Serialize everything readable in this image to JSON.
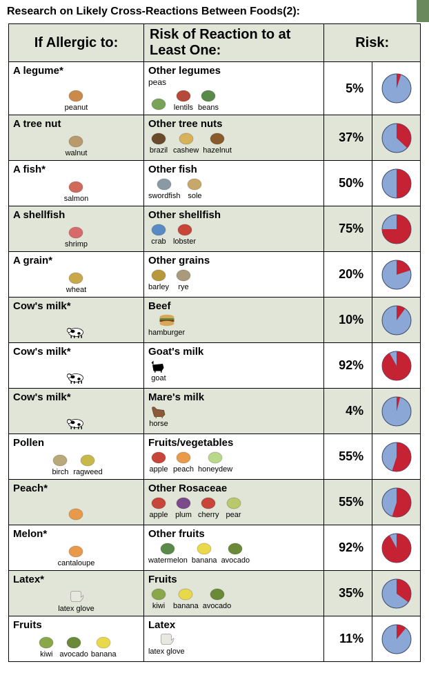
{
  "title": "Research on Likely Cross-Reactions Between Foods(2):",
  "headers": {
    "c1": "If Allergic to:",
    "c2": "Risk of Reaction to at Least One:",
    "c3": "Risk:"
  },
  "pie": {
    "fill": "#8aa7d6",
    "risk": "#c52233",
    "stroke": "#3a4a6b",
    "size": 46
  },
  "rows": [
    {
      "alt": false,
      "risk": 5,
      "left_title": "A legume*",
      "left_items": [
        {
          "label": "peanut",
          "c": "#c98a4a"
        }
      ],
      "right_title": "Other legumes",
      "right_title_sub": "peas",
      "right_items": [
        {
          "label": "",
          "c": "#7aa35a"
        },
        {
          "label": "lentils",
          "c": "#b54a3a"
        },
        {
          "label": "beans",
          "c": "#5a8a4a"
        }
      ]
    },
    {
      "alt": true,
      "risk": 37,
      "left_title": "A tree nut",
      "left_items": [
        {
          "label": "walnut",
          "c": "#b99a6a"
        }
      ],
      "right_title": "Other tree nuts",
      "right_items": [
        {
          "label": "brazil",
          "c": "#6a4a2a"
        },
        {
          "label": "cashew",
          "c": "#d8b25a"
        },
        {
          "label": "hazelnut",
          "c": "#8a5a2a"
        }
      ]
    },
    {
      "alt": false,
      "risk": 50,
      "left_title": "A fish*",
      "left_items": [
        {
          "label": "salmon",
          "c": "#d06a5a"
        }
      ],
      "right_title": "Other fish",
      "right_items": [
        {
          "label": "swordfish",
          "c": "#8a9aa5"
        },
        {
          "label": "sole",
          "c": "#c8a86a"
        }
      ]
    },
    {
      "alt": true,
      "risk": 75,
      "left_title": "A shellfish",
      "left_items": [
        {
          "label": "shrimp",
          "c": "#d86a6a"
        }
      ],
      "right_title": "Other shellfish",
      "right_items": [
        {
          "label": "crab",
          "c": "#5a8ac5"
        },
        {
          "label": "lobster",
          "c": "#c8453a"
        }
      ]
    },
    {
      "alt": false,
      "risk": 20,
      "left_title": "A grain*",
      "left_items": [
        {
          "label": "wheat",
          "c": "#c8a84a"
        }
      ],
      "right_title": "Other grains",
      "right_items": [
        {
          "label": "barley",
          "c": "#b8983a"
        },
        {
          "label": "rye",
          "c": "#a89a7a"
        }
      ]
    },
    {
      "alt": true,
      "risk": 10,
      "left_title": "Cow's milk*",
      "left_items": [
        {
          "label": "",
          "c": "#000000",
          "kind": "cow"
        }
      ],
      "right_title": "Beef",
      "right_items": [
        {
          "label": "hamburger",
          "c": "#c87a3a",
          "kind": "burger"
        }
      ]
    },
    {
      "alt": false,
      "risk": 92,
      "left_title": "Cow's milk*",
      "left_items": [
        {
          "label": "",
          "c": "#000000",
          "kind": "cow"
        }
      ],
      "right_title": "Goat's milk",
      "right_items": [
        {
          "label": "goat",
          "c": "#000000",
          "kind": "goat"
        }
      ]
    },
    {
      "alt": true,
      "risk": 4,
      "left_title": "Cow's milk*",
      "left_items": [
        {
          "label": "",
          "c": "#000000",
          "kind": "cow"
        }
      ],
      "right_title": "Mare's milk",
      "right_items": [
        {
          "label": "horse",
          "c": "#8a5a3a",
          "kind": "horse"
        }
      ]
    },
    {
      "alt": false,
      "risk": 55,
      "left_title": "Pollen",
      "left_items": [
        {
          "label": "birch",
          "c": "#b8a87a"
        },
        {
          "label": "ragweed",
          "c": "#c8b84a"
        }
      ],
      "right_title": "Fruits/vegetables",
      "right_items": [
        {
          "label": "apple",
          "c": "#c8453a"
        },
        {
          "label": "peach",
          "c": "#e89a4a"
        },
        {
          "label": "honeydew",
          "c": "#b8d88a"
        }
      ]
    },
    {
      "alt": true,
      "risk": 55,
      "left_title": "Peach*",
      "left_items": [
        {
          "label": "",
          "c": "#e89a4a"
        }
      ],
      "right_title": "Other Rosaceae",
      "right_items": [
        {
          "label": "apple",
          "c": "#c8453a"
        },
        {
          "label": "plum",
          "c": "#7a4a8a"
        },
        {
          "label": "cherry",
          "c": "#c8453a"
        },
        {
          "label": "pear",
          "c": "#b8c86a"
        }
      ]
    },
    {
      "alt": false,
      "risk": 92,
      "left_title": "Melon*",
      "left_items": [
        {
          "label": "cantaloupe",
          "c": "#e89a4a"
        }
      ],
      "right_title": "Other fruits",
      "right_items": [
        {
          "label": "watermelon",
          "c": "#5a8a4a"
        },
        {
          "label": "banana",
          "c": "#e8d84a"
        },
        {
          "label": "avocado",
          "c": "#6a8a3a"
        }
      ]
    },
    {
      "alt": true,
      "risk": 35,
      "left_title": "Latex*",
      "left_items": [
        {
          "label": "latex glove",
          "c": "#e8e8e0",
          "kind": "glove"
        }
      ],
      "right_title": "Fruits",
      "right_items": [
        {
          "label": "kiwi",
          "c": "#8aa84a"
        },
        {
          "label": "banana",
          "c": "#e8d84a"
        },
        {
          "label": "avocado",
          "c": "#6a8a3a"
        }
      ]
    },
    {
      "alt": false,
      "risk": 11,
      "left_title": "Fruits",
      "left_items": [
        {
          "label": "kiwi",
          "c": "#8aa84a"
        },
        {
          "label": "avocado",
          "c": "#6a8a3a"
        },
        {
          "label": "banana",
          "c": "#e8d84a"
        }
      ],
      "right_title": "Latex",
      "right_items": [
        {
          "label": "latex glove",
          "c": "#e8e8e0",
          "kind": "glove"
        }
      ]
    }
  ]
}
